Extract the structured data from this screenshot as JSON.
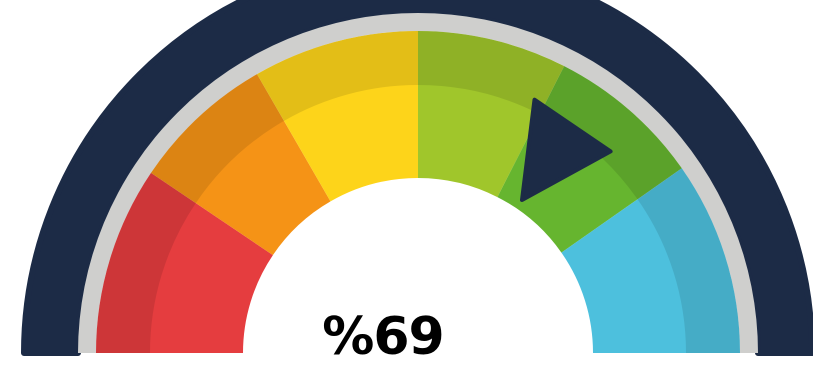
{
  "gauge": {
    "value_label": "%69",
    "value": 69,
    "min": 0,
    "max": 100,
    "colors": {
      "outer_ring": "#1c2b46",
      "separator_ring": "#cfcfcd",
      "pointer": "#1c2b46",
      "segments": [
        "#e53d3f",
        "#f59316",
        "#fdd41a",
        "#a0c62b",
        "#66b52f",
        "#4dc0dd"
      ]
    }
  }
}
